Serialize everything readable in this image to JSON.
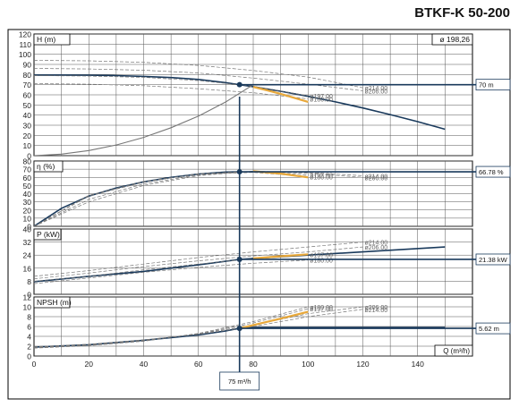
{
  "title": "BTKF-K 50-200",
  "operating_point_label": "75 m³/h",
  "chart_data": [
    {
      "type": "line",
      "panel": "H",
      "ylabel": "H (m)",
      "impeller_label": "ø 198,26",
      "ylim": [
        0,
        120
      ],
      "yticks": [
        0,
        10,
        20,
        30,
        40,
        50,
        60,
        70,
        80,
        90,
        100,
        110,
        120
      ],
      "result_label": "70 m",
      "result_value": 70,
      "series": [
        {
          "role": "selected",
          "x": [
            0,
            10,
            20,
            30,
            40,
            50,
            60,
            70,
            75,
            80,
            90,
            100,
            110,
            120,
            130,
            140,
            150
          ],
          "y": [
            79.5,
            79.5,
            79.3,
            79,
            78.2,
            77,
            75.2,
            72,
            70,
            68,
            63.5,
            58.5,
            53,
            47,
            40.5,
            33.5,
            26
          ]
        },
        {
          "role": "system",
          "x": [
            0,
            10,
            20,
            30,
            40,
            50,
            60,
            70,
            80
          ],
          "y": [
            0,
            1.5,
            5,
            10.5,
            18,
            27.5,
            39,
            53,
            70
          ]
        },
        {
          "name": "ø180.00",
          "role": "impeller",
          "x": [
            0,
            20,
            40,
            60,
            80,
            100
          ],
          "y": [
            71,
            70.5,
            69,
            66,
            62,
            56
          ]
        },
        {
          "name": "ø197.00",
          "role": "impeller",
          "x": [
            0,
            20,
            40,
            60,
            80,
            100
          ],
          "y": [
            79,
            78.5,
            77.2,
            74,
            68.5,
            59
          ]
        },
        {
          "name": "ø206.00",
          "role": "impeller",
          "x": [
            0,
            20,
            40,
            60,
            80,
            100,
            120
          ],
          "y": [
            86,
            85.5,
            84.3,
            81.5,
            76.5,
            70.5,
            64
          ]
        },
        {
          "name": "ø214.00",
          "role": "impeller",
          "x": [
            0,
            20,
            40,
            60,
            80,
            100,
            120
          ],
          "y": [
            94,
            93.5,
            92,
            89,
            84,
            77.5,
            67
          ]
        },
        {
          "role": "range",
          "x": [
            80,
            85,
            90,
            95,
            100
          ],
          "y": [
            67.8,
            64.5,
            61,
            57,
            53
          ]
        }
      ]
    },
    {
      "type": "line",
      "panel": "eta",
      "ylabel": "η (%)",
      "ylim": [
        0,
        80
      ],
      "yticks": [
        0,
        10,
        20,
        30,
        40,
        50,
        60,
        70
      ],
      "result_label": "66.78 %",
      "result_value": 66.78,
      "series": [
        {
          "role": "selected",
          "x": [
            0,
            10,
            20,
            30,
            40,
            50,
            60,
            70,
            75
          ],
          "y": [
            0,
            22,
            37,
            47,
            54.5,
            60,
            64,
            66.5,
            66.8
          ]
        },
        {
          "name": "ø180.00",
          "role": "impeller",
          "x": [
            0,
            20,
            40,
            60,
            80,
            100
          ],
          "y": [
            0,
            38,
            55,
            64,
            66,
            61
          ]
        },
        {
          "name": "ø197.00",
          "role": "impeller",
          "x": [
            0,
            20,
            40,
            60,
            80,
            100
          ],
          "y": [
            0,
            37,
            54,
            64.5,
            67.5,
            63
          ]
        },
        {
          "name": "ø206.00",
          "role": "impeller",
          "x": [
            0,
            20,
            40,
            60,
            80,
            100,
            120
          ],
          "y": [
            0,
            33,
            52,
            63,
            67.5,
            65,
            60
          ]
        },
        {
          "name": "ø214.00",
          "role": "impeller",
          "x": [
            0,
            20,
            40,
            60,
            80,
            100,
            120
          ],
          "y": [
            0,
            30,
            50,
            62,
            67.5,
            66,
            62
          ]
        },
        {
          "role": "range",
          "x": [
            80,
            90,
            100
          ],
          "y": [
            67.5,
            64.5,
            60
          ]
        }
      ]
    },
    {
      "type": "line",
      "panel": "P",
      "ylabel": "P (kW)",
      "ylim": [
        0,
        40
      ],
      "yticks": [
        0,
        8,
        16,
        24,
        32,
        40
      ],
      "result_label": "21.38 kW",
      "result_value": 21.38,
      "series": [
        {
          "role": "selected",
          "x": [
            0,
            20,
            40,
            60,
            75,
            80,
            100,
            120,
            150
          ],
          "y": [
            7.7,
            11,
            14,
            18,
            21.38,
            22,
            24,
            26,
            29
          ]
        },
        {
          "name": "ø180.00",
          "role": "impeller",
          "x": [
            0,
            20,
            40,
            60,
            80,
            100
          ],
          "y": [
            6.5,
            10,
            13.5,
            16.5,
            19,
            21
          ]
        },
        {
          "name": "ø197.00",
          "role": "impeller",
          "x": [
            0,
            20,
            40,
            60,
            80,
            100
          ],
          "y": [
            8,
            11,
            15,
            18.5,
            22,
            24.5
          ]
        },
        {
          "name": "ø206.00",
          "role": "impeller",
          "x": [
            0,
            20,
            40,
            60,
            80,
            100,
            120
          ],
          "y": [
            9.5,
            13,
            17,
            20.5,
            23.5,
            26,
            29
          ]
        },
        {
          "name": "ø214.00",
          "role": "impeller",
          "x": [
            0,
            20,
            40,
            60,
            80,
            100,
            120
          ],
          "y": [
            11,
            14.5,
            18.5,
            22.5,
            26,
            29,
            32
          ]
        },
        {
          "role": "range",
          "x": [
            80,
            90,
            100
          ],
          "y": [
            22,
            23.3,
            24.5
          ]
        }
      ]
    },
    {
      "type": "line",
      "panel": "NPSH",
      "ylabel": "NPSH (m)",
      "xlabel": "Q (m³/h)",
      "ylim": [
        0,
        12
      ],
      "yticks": [
        0,
        2,
        4,
        6,
        8,
        10,
        12
      ],
      "xlim": [
        0,
        160
      ],
      "xticks": [
        0,
        20,
        40,
        60,
        80,
        100,
        120,
        140
      ],
      "result_label": "5.62 m",
      "result_value": 5.62,
      "series": [
        {
          "role": "selected",
          "x": [
            0,
            20,
            40,
            60,
            70,
            75,
            80,
            100,
            130,
            150
          ],
          "y": [
            1.8,
            2.3,
            3.2,
            4.3,
            5.1,
            5.62,
            5.8,
            5.8,
            5.8,
            5.8
          ]
        },
        {
          "name": "ø180.00",
          "role": "impeller",
          "x": [
            0,
            20,
            40,
            60,
            80,
            100
          ],
          "y": [
            1.6,
            2.1,
            3,
            4.6,
            7,
            10
          ]
        },
        {
          "name": "ø197.00",
          "role": "impeller",
          "x": [
            0,
            20,
            40,
            60,
            80,
            100
          ],
          "y": [
            1.7,
            2.2,
            3.1,
            4.5,
            6.7,
            9.6
          ]
        },
        {
          "name": "ø206.00",
          "role": "impeller",
          "x": [
            0,
            20,
            40,
            60,
            80,
            100,
            120
          ],
          "y": [
            1.8,
            2.3,
            3.2,
            4.5,
            6.3,
            8.6,
            10
          ]
        },
        {
          "name": "ø214.00",
          "role": "impeller",
          "x": [
            0,
            20,
            40,
            60,
            80,
            100,
            120
          ],
          "y": [
            1.9,
            2.4,
            3.3,
            4.4,
            6,
            8,
            9.5
          ]
        },
        {
          "role": "range",
          "x": [
            75,
            80,
            90,
            100
          ],
          "y": [
            5.62,
            6.3,
            7.6,
            9
          ]
        }
      ]
    }
  ],
  "operating_point": {
    "q": 75
  },
  "colors": {
    "frame": "#000000",
    "grid": "#555555",
    "selected": "#1a3a5c",
    "impeller": "#777777",
    "system": "#777777",
    "range": "#e8a83a",
    "marker": "#1a3a5c"
  }
}
